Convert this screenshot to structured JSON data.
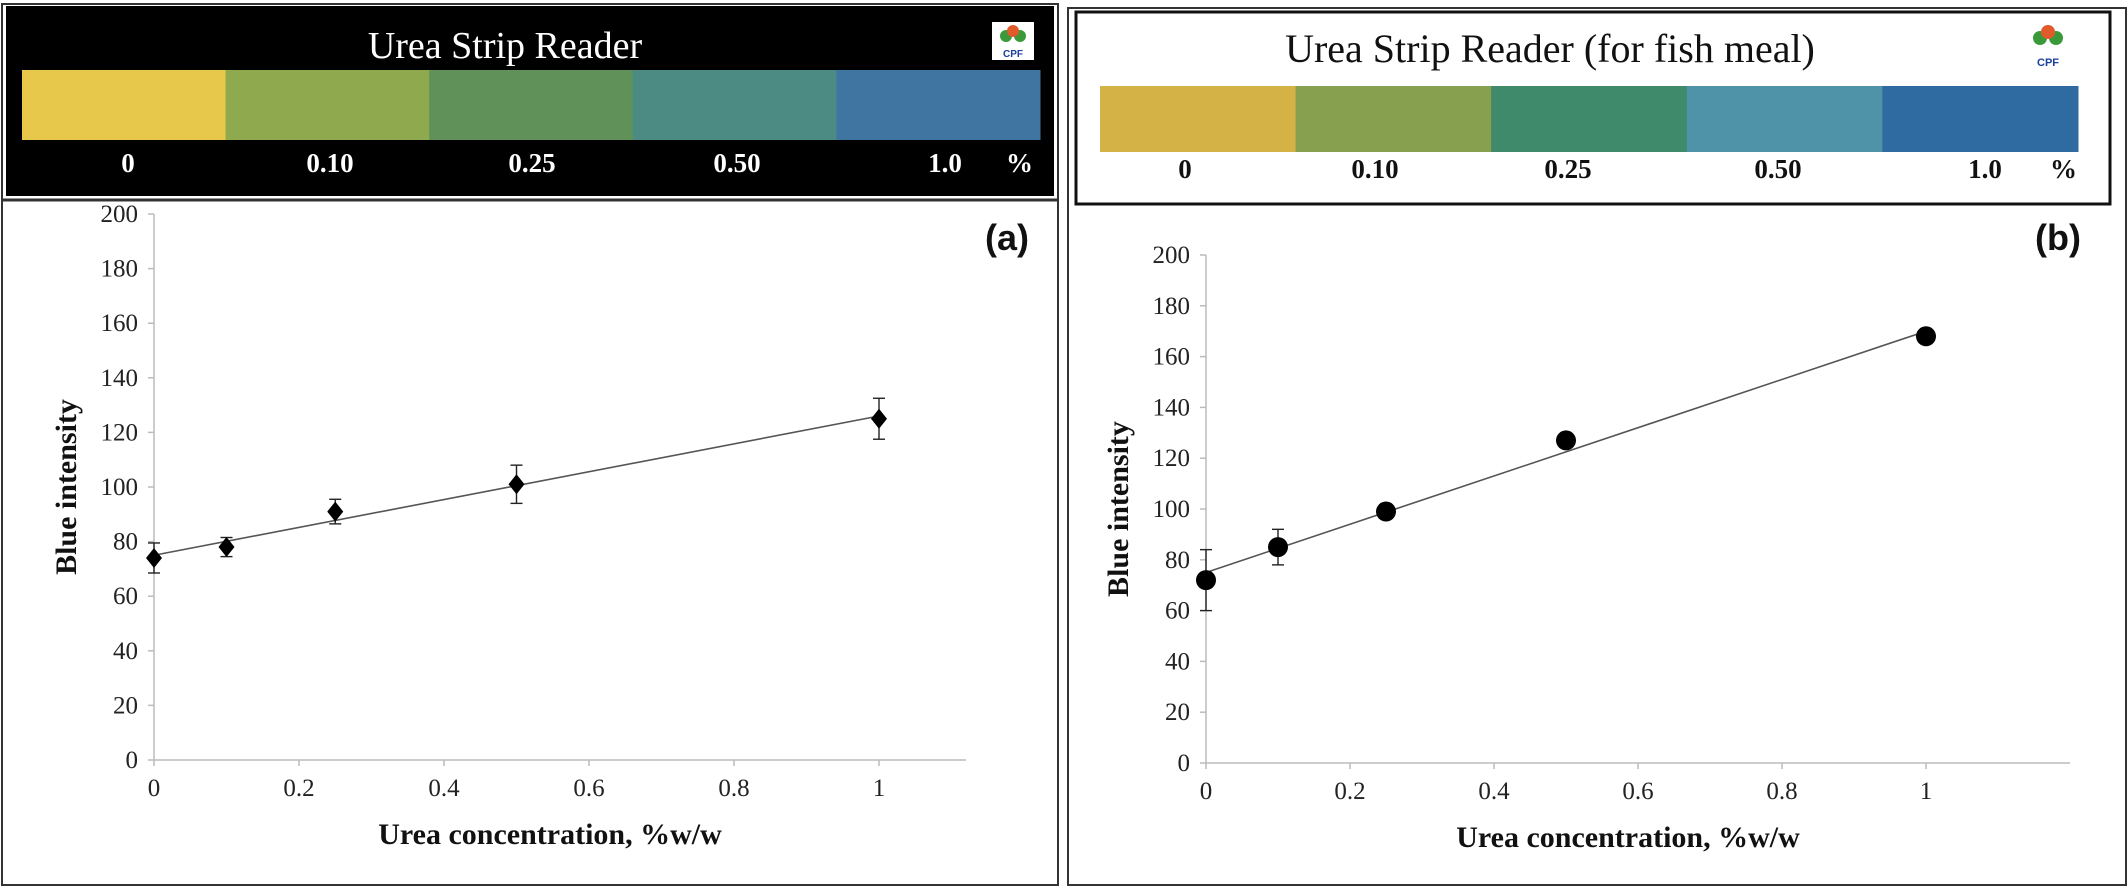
{
  "panels": [
    {
      "strip_title": "Urea Strip Reader",
      "logo_text": "CPF",
      "strip_labels": [
        "0",
        "0.10",
        "0.25",
        "0.50",
        "1.0"
      ],
      "strip_unit": "%",
      "strip_colors": [
        "#e8c84a",
        "#8fa94e",
        "#5f9158",
        "#4c8a84",
        "#3f75a0"
      ],
      "panel_label": "(a)"
    },
    {
      "strip_title": "Urea Strip Reader (for fish meal)",
      "logo_text": "CPF",
      "strip_labels": [
        "0",
        "0.10",
        "0.25",
        "0.50",
        "1.0"
      ],
      "strip_unit": "%",
      "strip_colors": [
        "#d4b246",
        "#86a050",
        "#3e8a6a",
        "#4e93a8",
        "#2f6aa0"
      ],
      "panel_label": "(b)"
    }
  ],
  "chart_data": [
    {
      "type": "scatter",
      "marker": "diamond",
      "x": [
        0,
        0.1,
        0.25,
        0.5,
        1
      ],
      "y": [
        74,
        78,
        91,
        101,
        125
      ],
      "error": [
        5.5,
        3.5,
        4.5,
        7,
        7.5
      ],
      "fit_line": {
        "x": [
          0,
          1
        ],
        "y": [
          75,
          126
        ]
      },
      "xlabel": "Urea concentration, %w/w",
      "ylabel": "Blue intensity",
      "xlim": [
        0,
        1.12
      ],
      "ylim": [
        0,
        200
      ],
      "xticks": [
        0,
        0.2,
        0.4,
        0.6,
        0.8,
        1
      ],
      "yticks": [
        0,
        20,
        40,
        60,
        80,
        100,
        120,
        140,
        160,
        180,
        200
      ],
      "grid": false
    },
    {
      "type": "scatter",
      "marker": "circle",
      "x": [
        0,
        0.1,
        0.25,
        0.5,
        1
      ],
      "y": [
        72,
        85,
        99,
        127,
        168
      ],
      "error": [
        12,
        7,
        2,
        2,
        2
      ],
      "fit_line": {
        "x": [
          0,
          1
        ],
        "y": [
          75,
          170
        ]
      },
      "xlabel": "Urea concentration, %w/w",
      "ylabel": "Blue intensity",
      "xlim": [
        0,
        1.2
      ],
      "ylim": [
        0,
        200
      ],
      "xticks": [
        0,
        0.2,
        0.4,
        0.6,
        0.8,
        1
      ],
      "yticks": [
        0,
        20,
        40,
        60,
        80,
        100,
        120,
        140,
        160,
        180,
        200
      ],
      "grid": false
    }
  ]
}
